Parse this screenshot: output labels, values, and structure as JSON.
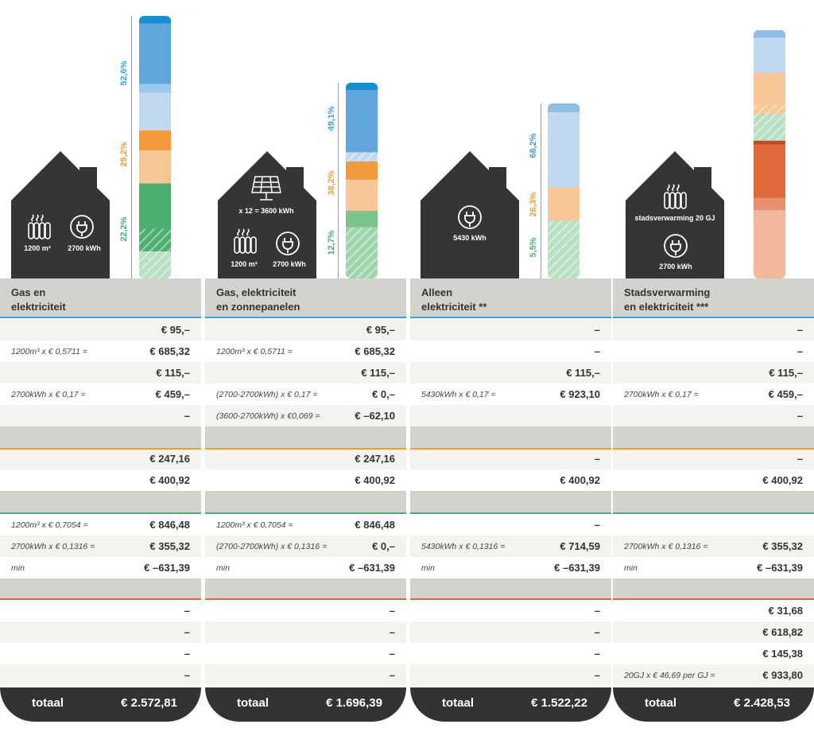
{
  "colors": {
    "gas": "#3ea0d8",
    "elec": "#f39a3c",
    "fixed": "#4caf70",
    "heat": "#e06a3c",
    "house": "#353535",
    "header": "#d4d2cc",
    "row_shade": "#f4f3f0"
  },
  "columns": [
    {
      "title_line1": "Gas en",
      "title_line2": "elektriciteit",
      "house_labels": {
        "gas": "1200 m³",
        "elec": "2700 kWh"
      },
      "percentages": {
        "gas": "52,6%",
        "elec": "25,2%",
        "fixed": "22,2%"
      },
      "rows": [
        {
          "formula": "",
          "value": "€  95,–"
        },
        {
          "formula": "1200m³ x € 0,5711 =",
          "value": "€  685,32"
        },
        {
          "formula": "",
          "value": "€  115,–"
        },
        {
          "formula": "2700kWh x € 0,17 =",
          "value": "€  459,–"
        },
        {
          "formula": "",
          "value": "–"
        },
        {
          "formula": "",
          "value": ""
        },
        {
          "formula": "",
          "value": "€  247,16"
        },
        {
          "formula": "",
          "value": "€ 400,92"
        },
        {
          "formula": "",
          "value": ""
        },
        {
          "formula": "1200m³ x € 0,7054 =",
          "value": "€  846,48"
        },
        {
          "formula": "2700kWh x € 0,1316 =",
          "value": "€  355,32"
        },
        {
          "formula": "min",
          "value": "€ –631,39"
        },
        {
          "formula": "",
          "value": ""
        },
        {
          "formula": "",
          "value": "–"
        },
        {
          "formula": "",
          "value": "–"
        },
        {
          "formula": "",
          "value": "–"
        },
        {
          "formula": "",
          "value": "–"
        }
      ],
      "total_label": "totaal",
      "total_value": "€  2.572,81"
    },
    {
      "title_line1": "Gas, elektriciteit",
      "title_line2": "en zonnepanelen",
      "house_labels": {
        "solar": "x 12 = 3600 kWh",
        "gas": "1200 m³",
        "elec": "2700 kWh"
      },
      "percentages": {
        "gas": "49,1%",
        "elec": "38,2%",
        "fixed": "12,7%"
      },
      "rows": [
        {
          "formula": "",
          "value": "€  95,–"
        },
        {
          "formula": "1200m³ x € 0,5711 =",
          "value": "€  685,32"
        },
        {
          "formula": "",
          "value": "€  115,–"
        },
        {
          "formula": "(2700-2700kWh) x € 0,17 =",
          "value": "€    0,–"
        },
        {
          "formula": "(3600-2700kWh) x €0,069 =",
          "value": "€ –62,10"
        },
        {
          "formula": "",
          "value": ""
        },
        {
          "formula": "",
          "value": "€  247,16"
        },
        {
          "formula": "",
          "value": "€ 400,92"
        },
        {
          "formula": "",
          "value": ""
        },
        {
          "formula": "1200m³ x € 0,7054 =",
          "value": "€  846,48"
        },
        {
          "formula": "(2700-2700kWh) x € 0,1316 =",
          "value": "€  0,–"
        },
        {
          "formula": "min",
          "value": "€ –631,39"
        },
        {
          "formula": "",
          "value": ""
        },
        {
          "formula": "",
          "value": "–"
        },
        {
          "formula": "",
          "value": "–"
        },
        {
          "formula": "",
          "value": "–"
        },
        {
          "formula": "",
          "value": "–"
        }
      ],
      "total_label": "totaal",
      "total_value": "€  1.696,39"
    },
    {
      "title_line1": "Alleen",
      "title_line2": "elektriciteit **",
      "house_labels": {
        "elec": "5430 kWh"
      },
      "percentages": {
        "gas": "68,2%",
        "elec": "26,3%",
        "fixed": "5,5%"
      },
      "rows": [
        {
          "formula": "",
          "value": "–"
        },
        {
          "formula": "",
          "value": "–"
        },
        {
          "formula": "",
          "value": "€  115,–"
        },
        {
          "formula": "5430kWh x € 0,17 =",
          "value": "€  923,10"
        },
        {
          "formula": "",
          "value": ""
        },
        {
          "formula": "",
          "value": ""
        },
        {
          "formula": "",
          "value": "–"
        },
        {
          "formula": "",
          "value": "€ 400,92"
        },
        {
          "formula": "",
          "value": ""
        },
        {
          "formula": "",
          "value": "–"
        },
        {
          "formula": "5430kWh x € 0,1316 =",
          "value": "€  714,59"
        },
        {
          "formula": "min",
          "value": "€ –631,39"
        },
        {
          "formula": "",
          "value": ""
        },
        {
          "formula": "",
          "value": "–"
        },
        {
          "formula": "",
          "value": "–"
        },
        {
          "formula": "",
          "value": "–"
        },
        {
          "formula": "",
          "value": "–"
        }
      ],
      "total_label": "totaal",
      "total_value": "€  1.522,22"
    },
    {
      "title_line1": "Stadsverwarming",
      "title_line2": "en elektriciteit ***",
      "house_labels": {
        "heat": "stadsverwarming 20 GJ",
        "elec": "2700 kWh"
      },
      "percentages": {},
      "rows": [
        {
          "formula": "",
          "value": "–"
        },
        {
          "formula": "",
          "value": "–"
        },
        {
          "formula": "",
          "value": "€  115,–"
        },
        {
          "formula": "2700kWh x € 0,17 =",
          "value": "€  459,–"
        },
        {
          "formula": "",
          "value": "–"
        },
        {
          "formula": "",
          "value": ""
        },
        {
          "formula": "",
          "value": "–"
        },
        {
          "formula": "",
          "value": "€ 400,92"
        },
        {
          "formula": "",
          "value": ""
        },
        {
          "formula": "",
          "value": ""
        },
        {
          "formula": "2700kWh x € 0,1316 =",
          "value": "€  355,32"
        },
        {
          "formula": "min",
          "value": "€ –631,39"
        },
        {
          "formula": "",
          "value": ""
        },
        {
          "formula": "",
          "value": "€   31,68"
        },
        {
          "formula": "",
          "value": "€  618,82"
        },
        {
          "formula": "",
          "value": "€  145,38"
        },
        {
          "formula": "20GJ x € 46,69 per GJ =",
          "value": "€  933,80"
        }
      ],
      "total_label": "totaal",
      "total_value": "€  2.428,53"
    }
  ],
  "chart_data": {
    "type": "bar",
    "categories": [
      "Gas en elektriciteit",
      "Gas, elektriciteit en zonnepanelen",
      "Alleen elektriciteit **",
      "Stadsverwarming en elektriciteit ***"
    ],
    "totals": [
      2572.81,
      1696.39,
      1522.22,
      2428.53
    ],
    "series": [
      {
        "values": [
          52.6,
          49.1,
          68.2,
          null
        ]
      },
      {
        "values": [
          25.2,
          38.2,
          26.3,
          null
        ]
      },
      {
        "values": [
          22.2,
          12.7,
          5.5,
          null
        ]
      }
    ],
    "segments": [
      [
        {
          "color": "#1a8fd0",
          "value": 2.5
        },
        {
          "color": "#5ea6dc",
          "value": 20.0
        },
        {
          "color": "#9cc8ec",
          "value": 3.0
        },
        {
          "color": "#c0d9f1",
          "value": 12.5
        },
        {
          "color": "#f39a3c",
          "value": 6.5
        },
        {
          "color": "#f8c797",
          "value": 11.0
        },
        {
          "color": "#4caf70",
          "value": 15.0
        },
        {
          "color": "#4caf70",
          "value": 7.5,
          "hatch": true
        },
        {
          "color": "#b8e0c2",
          "value": 9.0,
          "hatch": true
        }
      ],
      [
        {
          "color": "#1a8fd0",
          "value": 4.0
        },
        {
          "color": "#5ea6dc",
          "value": 34.0
        },
        {
          "color": "#c0d9f1",
          "value": 5.0,
          "hatch": true
        },
        {
          "color": "#f39a3c",
          "value": 10.0
        },
        {
          "color": "#f8c797",
          "value": 17.0
        },
        {
          "color": "#7cc28c",
          "value": 9.0
        },
        {
          "color": "#9fd4ad",
          "value": 28.0,
          "hatch": true
        }
      ],
      [
        {
          "color": "#8fbde6",
          "value": 5.0
        },
        {
          "color": "#c0d9f1",
          "value": 43.0
        },
        {
          "color": "#f8c797",
          "value": 19.0
        },
        {
          "color": "#b8e0c2",
          "value": 33.0,
          "hatch": true
        }
      ],
      [
        {
          "color": "#8fbde6",
          "value": 3.0
        },
        {
          "color": "#c0d9f1",
          "value": 14.0
        },
        {
          "color": "#f8c797",
          "value": 13.0
        },
        {
          "color": "#f8c797",
          "value": 4.0,
          "hatch": true
        },
        {
          "color": "#b8e0c2",
          "value": 10.5,
          "hatch": true
        },
        {
          "color": "#c24a22",
          "value": 1.5
        },
        {
          "color": "#e06a3c",
          "value": 21.5
        },
        {
          "color": "#e9906e",
          "value": 5.0
        },
        {
          "color": "#f1b89c",
          "value": 27.5
        }
      ]
    ]
  }
}
